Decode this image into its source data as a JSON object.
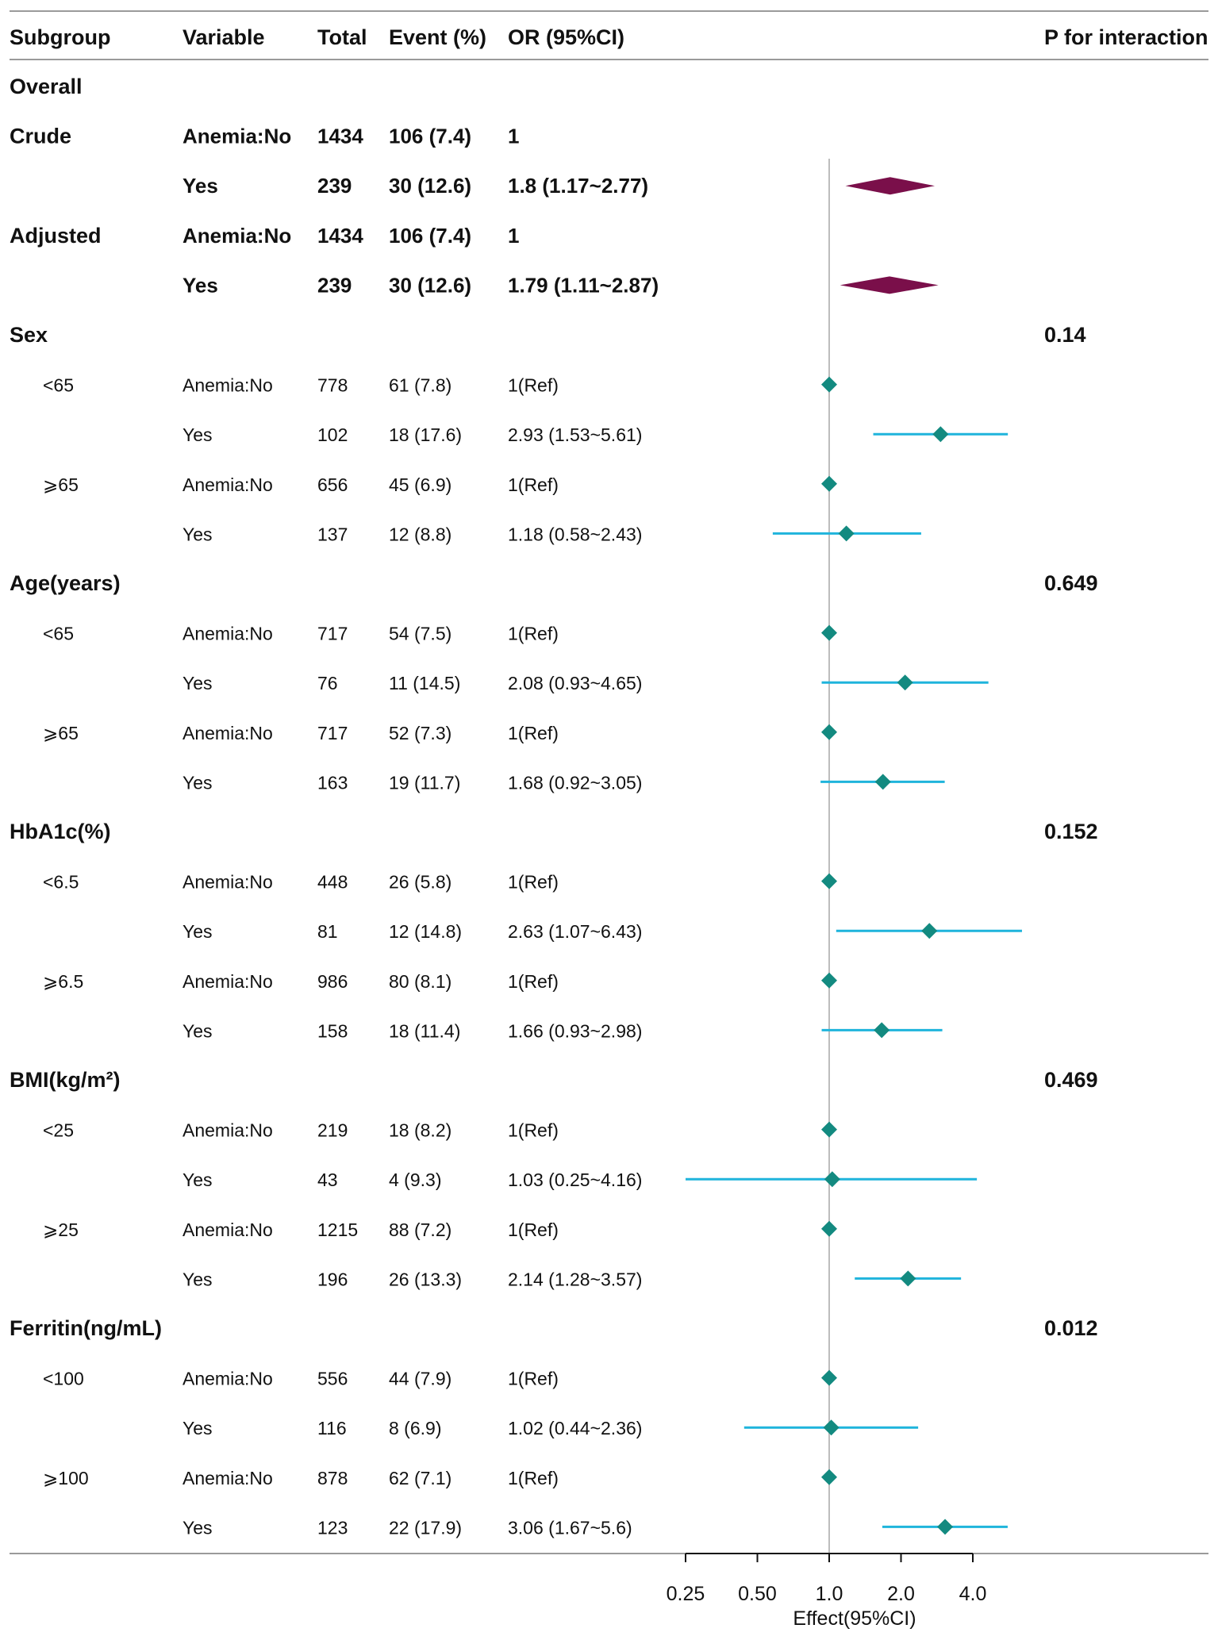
{
  "chart_data": {
    "type": "forest",
    "header": {
      "subgroup": "Subgroup",
      "variable": "Variable",
      "total": "Total",
      "event": "Event (%)",
      "or": "OR (95%CI)",
      "p": "P for interaction"
    },
    "x_scale": "log2",
    "xlim": [
      0.25,
      4.0
    ],
    "reference_line": 1.0,
    "xticks": [
      "0.25",
      "0.50",
      "1.0",
      "2.0",
      "4.0"
    ],
    "xtick_values": [
      0.25,
      0.5,
      1.0,
      2.0,
      4.0
    ],
    "xlabel": "Effect(95%CI)",
    "colors": {
      "summary": "#7a0f4a",
      "ci": "#1fb4dc",
      "point": "#138a80",
      "refline": "#bdbdbd",
      "rule": "#9a9a9a"
    },
    "rows": [
      {
        "kind": "section",
        "subgroup": "Overall",
        "p": ""
      },
      {
        "kind": "summary",
        "subgroup": "Crude",
        "variable": "Anemia:No",
        "total": "1434",
        "event": "106 (7.4)",
        "or_text": "1"
      },
      {
        "kind": "summary",
        "subgroup": "",
        "variable": "Yes",
        "total": "239",
        "event": "30 (12.6)",
        "or_text": "1.8 (1.17~2.77)",
        "est": 1.8,
        "lo": 1.17,
        "hi": 2.77
      },
      {
        "kind": "summary",
        "subgroup": "Adjusted",
        "variable": "Anemia:No",
        "total": "1434",
        "event": "106 (7.4)",
        "or_text": "1"
      },
      {
        "kind": "summary",
        "subgroup": "",
        "variable": "Yes",
        "total": "239",
        "event": "30 (12.6)",
        "or_text": "1.79 (1.11~2.87)",
        "est": 1.79,
        "lo": 1.11,
        "hi": 2.87
      },
      {
        "kind": "section",
        "subgroup": "Sex",
        "p": "0.14"
      },
      {
        "kind": "row",
        "subgroup": "<65",
        "variable": "Anemia:No",
        "total": "778",
        "event": "61 (7.8)",
        "or_text": "1(Ref)",
        "est": 1.0
      },
      {
        "kind": "row",
        "subgroup": "",
        "variable": "Yes",
        "total": "102",
        "event": "18 (17.6)",
        "or_text": "2.93 (1.53~5.61)",
        "est": 2.93,
        "lo": 1.53,
        "hi": 5.61
      },
      {
        "kind": "row",
        "subgroup": "⩾65",
        "variable": "Anemia:No",
        "total": "656",
        "event": "45 (6.9)",
        "or_text": "1(Ref)",
        "est": 1.0
      },
      {
        "kind": "row",
        "subgroup": "",
        "variable": "Yes",
        "total": "137",
        "event": "12 (8.8)",
        "or_text": "1.18 (0.58~2.43)",
        "est": 1.18,
        "lo": 0.58,
        "hi": 2.43
      },
      {
        "kind": "section",
        "subgroup": "Age(years)",
        "p": "0.649"
      },
      {
        "kind": "row",
        "subgroup": "<65",
        "variable": "Anemia:No",
        "total": "717",
        "event": "54 (7.5)",
        "or_text": "1(Ref)",
        "est": 1.0
      },
      {
        "kind": "row",
        "subgroup": "",
        "variable": "Yes",
        "total": "76",
        "event": "11 (14.5)",
        "or_text": "2.08 (0.93~4.65)",
        "est": 2.08,
        "lo": 0.93,
        "hi": 4.65
      },
      {
        "kind": "row",
        "subgroup": "⩾65",
        "variable": "Anemia:No",
        "total": "717",
        "event": "52 (7.3)",
        "or_text": "1(Ref)",
        "est": 1.0
      },
      {
        "kind": "row",
        "subgroup": "",
        "variable": "Yes",
        "total": "163",
        "event": "19 (11.7)",
        "or_text": "1.68 (0.92~3.05)",
        "est": 1.68,
        "lo": 0.92,
        "hi": 3.05
      },
      {
        "kind": "section",
        "subgroup": "HbA1c(%)",
        "p": "0.152"
      },
      {
        "kind": "row",
        "subgroup": "<6.5",
        "variable": "Anemia:No",
        "total": "448",
        "event": "26 (5.8)",
        "or_text": "1(Ref)",
        "est": 1.0
      },
      {
        "kind": "row",
        "subgroup": "",
        "variable": "Yes",
        "total": "81",
        "event": "12 (14.8)",
        "or_text": "2.63 (1.07~6.43)",
        "est": 2.63,
        "lo": 1.07,
        "hi": 6.43
      },
      {
        "kind": "row",
        "subgroup": "⩾6.5",
        "variable": "Anemia:No",
        "total": "986",
        "event": "80 (8.1)",
        "or_text": "1(Ref)",
        "est": 1.0
      },
      {
        "kind": "row",
        "subgroup": "",
        "variable": "Yes",
        "total": "158",
        "event": "18 (11.4)",
        "or_text": "1.66 (0.93~2.98)",
        "est": 1.66,
        "lo": 0.93,
        "hi": 2.98
      },
      {
        "kind": "section",
        "subgroup": "BMI(kg/m²)",
        "p": "0.469"
      },
      {
        "kind": "row",
        "subgroup": "<25",
        "variable": "Anemia:No",
        "total": "219",
        "event": "18 (8.2)",
        "or_text": "1(Ref)",
        "est": 1.0
      },
      {
        "kind": "row",
        "subgroup": "",
        "variable": "Yes",
        "total": "43",
        "event": "4 (9.3)",
        "or_text": "1.03 (0.25~4.16)",
        "est": 1.03,
        "lo": 0.25,
        "hi": 4.16
      },
      {
        "kind": "row",
        "subgroup": "⩾25",
        "variable": "Anemia:No",
        "total": "1215",
        "event": "88 (7.2)",
        "or_text": "1(Ref)",
        "est": 1.0
      },
      {
        "kind": "row",
        "subgroup": "",
        "variable": "Yes",
        "total": "196",
        "event": "26 (13.3)",
        "or_text": "2.14 (1.28~3.57)",
        "est": 2.14,
        "lo": 1.28,
        "hi": 3.57
      },
      {
        "kind": "section",
        "subgroup": "Ferritin(ng/mL)",
        "p": "0.012"
      },
      {
        "kind": "row",
        "subgroup": "<100",
        "variable": "Anemia:No",
        "total": "556",
        "event": "44 (7.9)",
        "or_text": "1(Ref)",
        "est": 1.0
      },
      {
        "kind": "row",
        "subgroup": "",
        "variable": "Yes",
        "total": "116",
        "event": "8 (6.9)",
        "or_text": "1.02 (0.44~2.36)",
        "est": 1.02,
        "lo": 0.44,
        "hi": 2.36
      },
      {
        "kind": "row",
        "subgroup": "⩾100",
        "variable": "Anemia:No",
        "total": "878",
        "event": "62 (7.1)",
        "or_text": "1(Ref)",
        "est": 1.0
      },
      {
        "kind": "row",
        "subgroup": "",
        "variable": "Yes",
        "total": "123",
        "event": "22 (17.9)",
        "or_text": "3.06 (1.67~5.6)",
        "est": 3.06,
        "lo": 1.67,
        "hi": 5.6
      }
    ]
  }
}
